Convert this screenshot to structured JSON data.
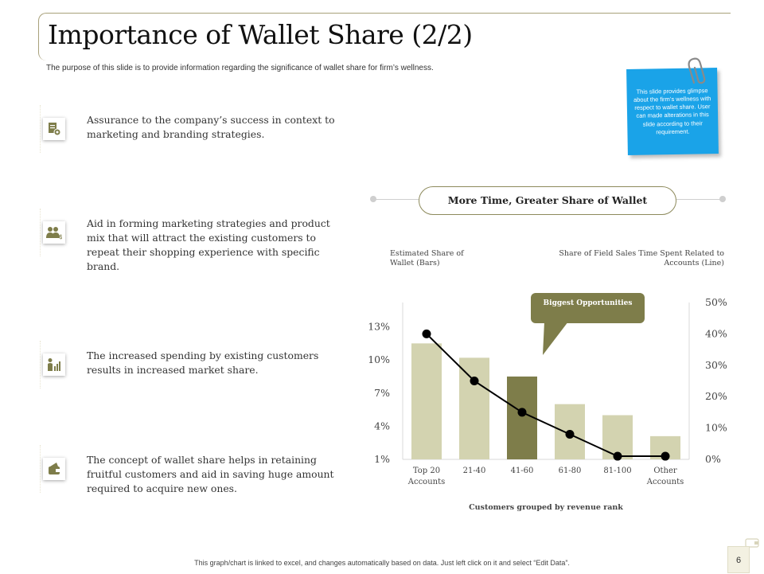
{
  "slide": {
    "title": "Importance of Wallet Share (2/2)",
    "subtitle": "The purpose of this slide is to provide information regarding the significance of wallet share for firm’s wellness.",
    "sticky_note": "This slide provides glimpse about the firm’s wellness with respect to wallet share. User can made alterations in this slide according to their requirement.",
    "footer": "This graph/chart is linked to excel, and changes automatically based on data. Just left click on it and select “Edit Data”.",
    "page_number": "6"
  },
  "features": [
    {
      "text": "Assurance to the company’s success in context to marketing and branding strategies.",
      "icon": "document-gear-icon"
    },
    {
      "text": "Aid in forming marketing strategies and product mix that will attract the existing customers to repeat their shopping experience with specific brand.",
      "icon": "people-dollar-icon"
    },
    {
      "text": "The increased spending by existing customers results in increased market share.",
      "icon": "person-chart-icon"
    },
    {
      "text": "The concept of wallet share helps in retaining fruitful customers and aid in saving huge amount required to acquire new ones.",
      "icon": "wallet-hand-icon"
    }
  ],
  "chart_header": "More Time, Greater Share of Wallet",
  "callout": "Biggest Opportunities",
  "colors": {
    "bar": "#d3d3b0",
    "bar_highlight": "#7e7d4a",
    "line": "#000000",
    "accent": "#8d8a5c",
    "sticky": "#1aa3e8"
  },
  "chart_data": {
    "type": "bar",
    "categories": [
      "Top 20\nAccounts",
      "21-40",
      "41-60",
      "61-80",
      "81-100",
      "Other\nAccounts"
    ],
    "series": [
      {
        "name": "Estimated Share of Wallet (Bars)",
        "type": "bar",
        "axis": "left",
        "values": [
          11.5,
          10.2,
          8.5,
          6.0,
          5.0,
          3.1
        ],
        "highlight_index": 2
      },
      {
        "name": "Share of Field Sales Time Spent Related to Accounts (Line)",
        "type": "line",
        "axis": "right",
        "values": [
          40,
          25,
          15,
          8,
          1,
          1
        ]
      }
    ],
    "left_axis": {
      "label": "Estimated Share of Wallet (Bars)",
      "ticks": [
        "1%",
        "4%",
        "7%",
        "10%",
        "13%"
      ],
      "tick_values": [
        1,
        4,
        7,
        10,
        13
      ],
      "range": [
        1,
        15.2
      ]
    },
    "right_axis": {
      "label": "Share of Field Sales Time Spent Related to Accounts (Line)",
      "ticks": [
        "0%",
        "10%",
        "20%",
        "30%",
        "40%",
        "50%"
      ],
      "tick_values": [
        0,
        10,
        20,
        30,
        40,
        50
      ],
      "range": [
        0,
        50
      ]
    },
    "xlabel": "Customers grouped by revenue rank",
    "grid": false
  }
}
